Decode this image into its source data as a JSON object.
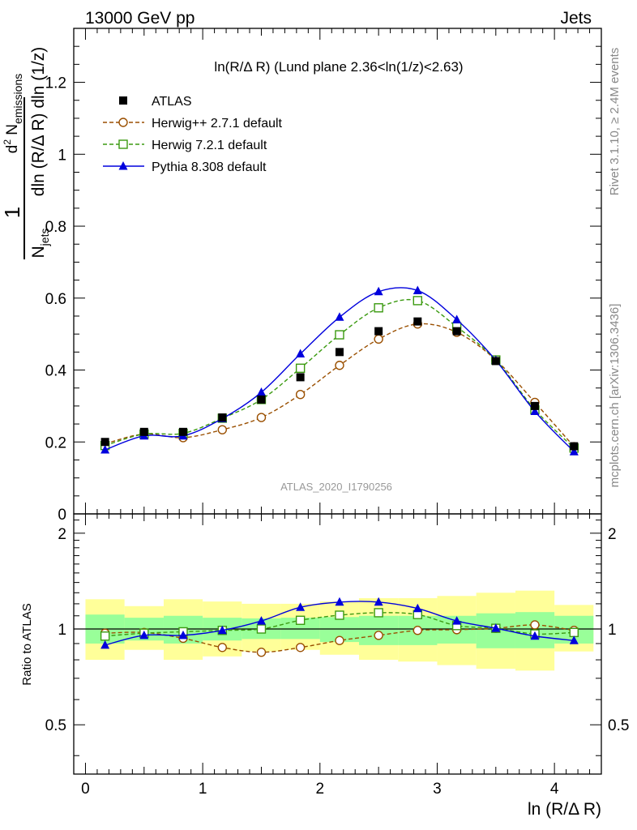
{
  "header": {
    "left": "13000 GeV pp",
    "right": "Jets"
  },
  "side_labels": {
    "top": "Rivet 3.1.10, ≥ 2.4M events",
    "bottom": "mcplots.cern.ch [arXiv:1306.3436]"
  },
  "watermark": "ATLAS_2020_I1790256",
  "colors": {
    "atlas": "#000000",
    "herwigpp": "#9a4f00",
    "herwig7": "#3b9a10",
    "pythia": "#0000dd",
    "band_inner": "#99ff99",
    "band_outer": "#ffff99"
  },
  "chart_data": {
    "type": "line",
    "title": "ln(R/Δ R) (Lund plane 2.36<ln(1/z)<2.63)",
    "xlabel": "ln (R/Δ R)",
    "ylabel": "1/N_jets d²N_emissions / dln (R/Δ R) dln (1/z)",
    "ratio_ylabel": "Ratio to ATLAS",
    "xlim": [
      -0.1,
      4.4
    ],
    "ylim": [
      0,
      1.35
    ],
    "ratio_ylim": [
      0.35,
      2.3
    ],
    "xticks": [
      0,
      1,
      2,
      3,
      4
    ],
    "yticks": [
      0,
      0.2,
      0.4,
      0.6,
      0.8,
      1,
      1.2
    ],
    "ytick_labels": [
      "0",
      "0.2",
      "0.4",
      "0.6",
      "0.8",
      "1",
      "1.2"
    ],
    "ratio_yticks": [
      0.5,
      1,
      2
    ],
    "ratio_ytick_labels": [
      "0.5",
      "1",
      "2"
    ],
    "legend_position": "top-left",
    "x": [
      0.167,
      0.5,
      0.833,
      1.167,
      1.5,
      1.833,
      2.167,
      2.5,
      2.833,
      3.167,
      3.5,
      3.833,
      4.167
    ],
    "bin_edges": [
      0,
      0.333,
      0.667,
      1,
      1.333,
      1.667,
      2,
      2.333,
      2.667,
      3,
      3.333,
      3.667,
      4,
      4.333
    ],
    "series": [
      {
        "name": "ATLAS",
        "key": "atlas",
        "marker": "filled-square",
        "values": [
          0.2,
          0.228,
          0.228,
          0.268,
          0.318,
          0.38,
          0.45,
          0.508,
          0.535,
          0.508,
          0.425,
          0.3,
          0.188
        ]
      },
      {
        "name": "Herwig++ 2.7.1 default",
        "key": "herwigpp",
        "marker": "open-circle",
        "dashed": true,
        "values": [
          0.195,
          0.222,
          0.212,
          0.234,
          0.268,
          0.332,
          0.413,
          0.486,
          0.528,
          0.505,
          0.428,
          0.31,
          0.187
        ]
      },
      {
        "name": "Herwig 7.2.1 default",
        "key": "herwig7",
        "marker": "open-square",
        "dashed": true,
        "values": [
          0.19,
          0.222,
          0.224,
          0.266,
          0.318,
          0.405,
          0.498,
          0.573,
          0.593,
          0.52,
          0.428,
          0.29,
          0.183
        ]
      },
      {
        "name": "Pythia 8.308 default",
        "key": "pythia",
        "marker": "filled-triangle",
        "values": [
          0.178,
          0.217,
          0.217,
          0.265,
          0.338,
          0.445,
          0.547,
          0.618,
          0.621,
          0.54,
          0.427,
          0.285,
          0.173
        ]
      }
    ],
    "ratio_series": [
      {
        "key": "herwigpp",
        "values": [
          0.97,
          0.975,
          0.935,
          0.875,
          0.845,
          0.875,
          0.92,
          0.955,
          0.99,
          0.995,
          1.005,
          1.03,
          0.99
        ]
      },
      {
        "key": "herwig7",
        "values": [
          0.95,
          0.97,
          0.98,
          0.99,
          1.0,
          1.065,
          1.105,
          1.125,
          1.11,
          1.025,
          1.005,
          0.965,
          0.975
        ]
      },
      {
        "key": "pythia",
        "values": [
          0.89,
          0.955,
          0.955,
          0.99,
          1.06,
          1.17,
          1.215,
          1.215,
          1.16,
          1.06,
          1.005,
          0.95,
          0.92
        ]
      }
    ],
    "uncertainty_bands": {
      "inner": [
        [
          0.9,
          1.11
        ],
        [
          0.92,
          1.085
        ],
        [
          0.9,
          1.1
        ],
        [
          0.92,
          1.085
        ],
        [
          0.93,
          1.08
        ],
        [
          0.93,
          1.085
        ],
        [
          0.91,
          1.09
        ],
        [
          0.89,
          1.1
        ],
        [
          0.89,
          1.1
        ],
        [
          0.9,
          1.1
        ],
        [
          0.87,
          1.12
        ],
        [
          0.87,
          1.13
        ],
        [
          0.9,
          1.1
        ]
      ],
      "outer": [
        [
          0.8,
          1.24
        ],
        [
          0.86,
          1.18
        ],
        [
          0.8,
          1.24
        ],
        [
          0.82,
          1.22
        ],
        [
          0.85,
          1.2
        ],
        [
          0.86,
          1.2
        ],
        [
          0.83,
          1.22
        ],
        [
          0.8,
          1.25
        ],
        [
          0.79,
          1.25
        ],
        [
          0.77,
          1.27
        ],
        [
          0.75,
          1.3
        ],
        [
          0.74,
          1.32
        ],
        [
          0.85,
          1.19
        ]
      ]
    }
  }
}
